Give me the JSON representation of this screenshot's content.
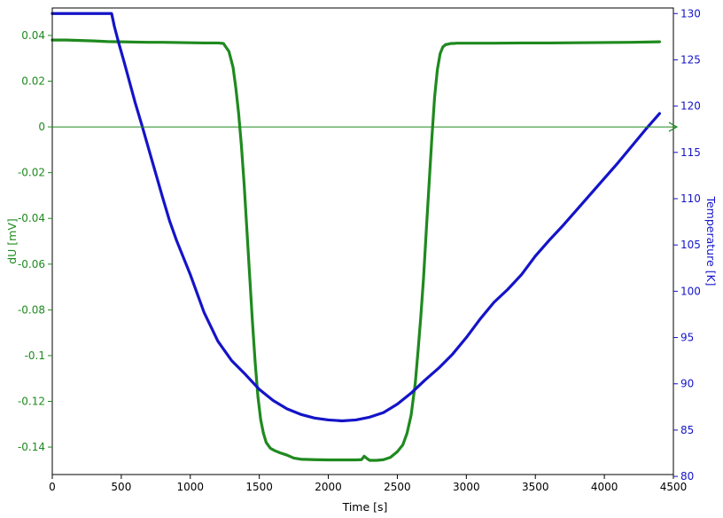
{
  "chart_data": {
    "type": "line",
    "xlabel": "Time [s]",
    "ylabel_left": "dU [mV]",
    "ylabel_right": "Temperature [K]",
    "xlim": [
      0,
      4500
    ],
    "ylim_left": [
      -0.152,
      0.052
    ],
    "ylim_right": [
      80.2,
      130.6
    ],
    "x_ticks": [
      0,
      500,
      1000,
      1500,
      2000,
      2500,
      3000,
      3500,
      4000,
      4500
    ],
    "x_tick_labels": [
      "0",
      "500",
      "1000",
      "1500",
      "2000",
      "2500",
      "3000",
      "3500",
      "4000",
      "4500"
    ],
    "y_left_ticks": [
      0.04,
      0.02,
      0,
      -0.02,
      -0.04,
      -0.06,
      -0.08,
      -0.1,
      -0.12,
      -0.14
    ],
    "y_left_tick_labels": [
      "0.04",
      "0.02",
      "0",
      "-0.02",
      "-0.04",
      "-0.06",
      "-0.08",
      "-0.1",
      "-0.12",
      "-0.14"
    ],
    "y_right_ticks": [
      130,
      125,
      120,
      115,
      110,
      105,
      100,
      95,
      90,
      85,
      80
    ],
    "y_right_tick_labels": [
      "130",
      "125",
      "120",
      "115",
      "110",
      "105",
      "100",
      "95",
      "90",
      "85",
      "80"
    ],
    "grid": false,
    "zero_line_left": 0,
    "colors": {
      "dU": "#1f8a1f",
      "temperature": "#1414c8",
      "axis": "#000000"
    },
    "series": [
      {
        "axis": "left",
        "x": [
          0,
          100,
          200,
          300,
          400,
          500,
          600,
          700,
          800,
          900,
          1000,
          1100,
          1200,
          1240,
          1280,
          1310,
          1330,
          1350,
          1370,
          1390,
          1410,
          1430,
          1450,
          1470,
          1490,
          1510,
          1530,
          1550,
          1580,
          1610,
          1650,
          1700,
          1750,
          1800,
          1900,
          2000,
          2100,
          2200,
          2240,
          2260,
          2280,
          2300,
          2350,
          2400,
          2450,
          2500,
          2540,
          2570,
          2600,
          2630,
          2650,
          2670,
          2690,
          2710,
          2730,
          2750,
          2770,
          2790,
          2810,
          2830,
          2850,
          2870,
          2890,
          2910,
          2930,
          3000,
          3200,
          3400,
          3600,
          3800,
          4000,
          4200,
          4400
        ],
        "values": [
          0.038,
          0.038,
          0.0378,
          0.0376,
          0.0373,
          0.0372,
          0.0371,
          0.037,
          0.037,
          0.0369,
          0.0368,
          0.0367,
          0.0367,
          0.0365,
          0.033,
          0.026,
          0.017,
          0.006,
          -0.008,
          -0.025,
          -0.045,
          -0.065,
          -0.085,
          -0.103,
          -0.118,
          -0.128,
          -0.134,
          -0.138,
          -0.1405,
          -0.1415,
          -0.1425,
          -0.1435,
          -0.1448,
          -0.1453,
          -0.1455,
          -0.1456,
          -0.1456,
          -0.1456,
          -0.1455,
          -0.144,
          -0.145,
          -0.1458,
          -0.1458,
          -0.1455,
          -0.1445,
          -0.142,
          -0.139,
          -0.134,
          -0.126,
          -0.112,
          -0.098,
          -0.083,
          -0.066,
          -0.045,
          -0.025,
          -0.005,
          0.013,
          0.025,
          0.032,
          0.035,
          0.036,
          0.0362,
          0.0365,
          0.0365,
          0.0366,
          0.0366,
          0.0366,
          0.0367,
          0.0367,
          0.0368,
          0.0369,
          0.037,
          0.0372
        ]
      },
      {
        "axis": "right",
        "x": [
          0,
          100,
          200,
          300,
          400,
          430,
          450,
          480,
          520,
          560,
          600,
          650,
          700,
          750,
          800,
          850,
          900,
          1000,
          1100,
          1200,
          1300,
          1400,
          1500,
          1600,
          1700,
          1800,
          1900,
          2000,
          2100,
          2200,
          2300,
          2400,
          2500,
          2600,
          2700,
          2800,
          2900,
          3000,
          3100,
          3200,
          3300,
          3400,
          3500,
          3600,
          3700,
          3800,
          3900,
          4000,
          4100,
          4200,
          4300,
          4400
        ],
        "values": [
          130.0,
          130.0,
          130.0,
          130.0,
          130.0,
          130.0,
          128.6,
          126.9,
          124.8,
          122.6,
          120.4,
          117.9,
          115.3,
          112.7,
          110.1,
          107.6,
          105.5,
          101.8,
          97.7,
          94.6,
          92.5,
          91.0,
          89.4,
          88.2,
          87.3,
          86.7,
          86.3,
          86.1,
          86.0,
          86.1,
          86.4,
          86.9,
          87.8,
          89.0,
          90.4,
          91.7,
          93.2,
          95.0,
          97.0,
          98.8,
          100.2,
          101.8,
          103.8,
          105.5,
          107.1,
          108.8,
          110.5,
          112.2,
          113.9,
          115.7,
          117.5,
          119.2
        ]
      }
    ]
  }
}
